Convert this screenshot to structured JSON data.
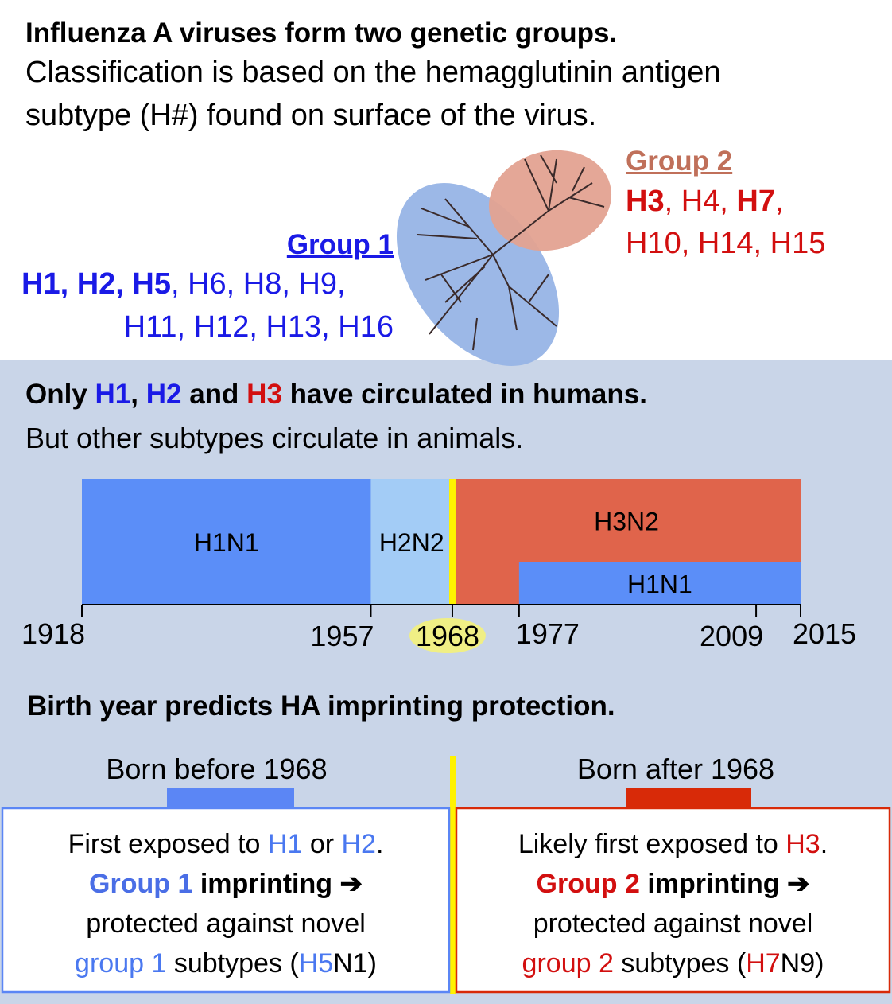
{
  "header": {
    "title": "Influenza A viruses form two genetic groups.",
    "subtitle": [
      "Classification is based on the hemagglutinin antigen",
      "subtype (H#) found on surface of the virus."
    ]
  },
  "group1": {
    "title": "Group 1",
    "line1": [
      "H1, H2, H5",
      ", H6, H8, H9,"
    ],
    "line2": "H11, H12, H13, H16"
  },
  "group2": {
    "title": "Group 2",
    "line1": [
      "H3",
      ", H4, ",
      "H7",
      ","
    ],
    "line2": "H10, H14, H15"
  },
  "humans": {
    "title": [
      "Only ",
      "H1",
      ", ",
      "H2",
      " and ",
      "H3",
      " have circulated in humans."
    ],
    "subtitle": "But other subtypes circulate in animals."
  },
  "timeline": {
    "start": 1918,
    "end": 2015,
    "ticks": [
      1918,
      1957,
      1968,
      1977,
      2009,
      2015
    ],
    "highlight": 1968,
    "segments": [
      {
        "label": "H1N1",
        "from": 1918,
        "to": 1957,
        "color": "#5b8ef8"
      },
      {
        "label": "H2N2",
        "from": 1957,
        "to": 1968,
        "color": "#a3ccf6"
      },
      {
        "label": "H3N2",
        "from": 1968,
        "to": 2015,
        "color": "#e0644b"
      },
      {
        "label": "H1N1",
        "from": 1977,
        "to": 2015,
        "color": "#5b8ef8"
      }
    ]
  },
  "birth": {
    "title": "Birth year predicts HA imprinting protection.",
    "before": {
      "label": "Born before 1968",
      "lines": [
        [
          "First exposed to ",
          "H1",
          " or ",
          "H2",
          "."
        ],
        [
          "Group 1",
          " imprinting ",
          "➔"
        ],
        [
          "protected against novel"
        ],
        [
          "group 1",
          " subtypes (",
          "H5",
          "N1)"
        ]
      ]
    },
    "after": {
      "label": "Born after 1968",
      "lines": [
        [
          "Likely first exposed to ",
          "H3",
          "."
        ],
        [
          "Group 2",
          " imprinting ",
          "➔"
        ],
        [
          "protected against novel"
        ],
        [
          "group 2",
          " subtypes (",
          "H7",
          "N9)"
        ]
      ]
    }
  }
}
